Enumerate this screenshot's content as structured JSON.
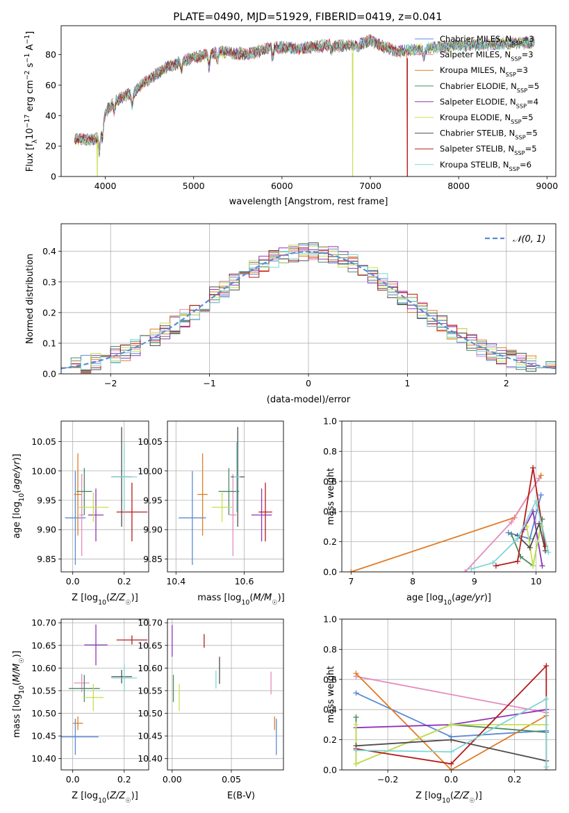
{
  "figure": {
    "title": "PLATE=0490, MJD=51929, FIBERID=0419, z=0.041"
  },
  "colors": {
    "Chabrier MILES": "#5b8ad6",
    "Salpeter MILES": "#e58bbd",
    "Kroupa MILES": "#e07b25",
    "Chabrier ELODIE": "#4a8a62",
    "Salpeter ELODIE": "#8e34b8",
    "Kroupa ELODIE": "#c6e04c",
    "Chabrier STELIB": "#4d4d4d",
    "Salpeter STELIB": "#b31b1b",
    "Kroupa STELIB": "#7fd6d6"
  },
  "chart_data": [
    {
      "id": "spectrum",
      "type": "line",
      "xlabel": "wavelength [Angstrom, rest frame]",
      "ylabel": "Flux [f_λ 10^-17 erg cm^-2 s^-1 A^-1]",
      "xlim": [
        3500,
        9100
      ],
      "ylim": [
        0,
        99
      ],
      "xticks": [
        4000,
        5000,
        6000,
        7000,
        8000,
        9000
      ],
      "yticks": [
        0,
        20,
        40,
        60,
        80
      ],
      "grid": false,
      "legend": "top-right",
      "series": [
        {
          "name": "Chabrier MILES",
          "nssp": 3
        },
        {
          "name": "Salpeter MILES",
          "nssp": 3
        },
        {
          "name": "Kroupa MILES",
          "nssp": 3
        },
        {
          "name": "Chabrier ELODIE",
          "nssp": 5
        },
        {
          "name": "Salpeter ELODIE",
          "nssp": 4
        },
        {
          "name": "Kroupa ELODIE",
          "nssp": 5
        },
        {
          "name": "Chabrier STELIB",
          "nssp": 5
        },
        {
          "name": "Salpeter STELIB",
          "nssp": 5
        },
        {
          "name": "Kroupa STELIB",
          "nssp": 6
        }
      ],
      "spectrum_envelope": {
        "x": [
          3650,
          3800,
          3900,
          4000,
          4100,
          4300,
          4500,
          4700,
          5000,
          5300,
          5600,
          5900,
          6200,
          6500,
          6800,
          7000,
          7300,
          7600,
          8000,
          8400,
          8800
        ],
        "y": [
          25,
          24,
          25,
          42,
          49,
          55,
          64,
          72,
          78,
          82,
          80,
          85,
          84,
          86,
          86,
          89,
          82,
          84,
          86,
          87,
          88
        ]
      },
      "dropouts": [
        {
          "series": "Kroupa ELODIE",
          "x": 3910
        },
        {
          "series": "Kroupa ELODIE",
          "x": 6800
        },
        {
          "series": "Salpeter STELIB",
          "x": 7420
        }
      ]
    },
    {
      "id": "residuals",
      "type": "histogram",
      "xlabel": "(data-model)/error",
      "ylabel": "Normed distribution",
      "xlim": [
        -2.5,
        2.5
      ],
      "ylim": [
        0,
        0.49
      ],
      "xticks": [
        -2,
        -1,
        0,
        1,
        2
      ],
      "yticks": [
        0.0,
        0.1,
        0.2,
        0.3,
        0.4
      ],
      "grid": true,
      "legend": "top-right",
      "reference_label": "𝒩(0, 1)",
      "bin_width": 0.1,
      "bin_start": -2.5
    },
    {
      "id": "age-vs-Z",
      "type": "scatter",
      "xlabel": "Z [log10(Z/Z☉)]",
      "ylabel": "age  [log10(age/yr)]",
      "xlim": [
        -0.045,
        0.295
      ],
      "ylim": [
        9.828,
        10.085
      ],
      "xticks": [
        0.0,
        0.2
      ],
      "yticks": [
        9.85,
        9.9,
        9.95,
        10.0,
        10.05
      ],
      "points": [
        {
          "series": "Chabrier MILES",
          "x": 0.01,
          "y": 9.92,
          "xerr": 0.04,
          "yerr": 0.08
        },
        {
          "series": "Salpeter MILES",
          "x": 0.035,
          "y": 9.925,
          "xerr": 0.01,
          "yerr": 0.07
        },
        {
          "series": "Kroupa MILES",
          "x": 0.02,
          "y": 9.96,
          "xerr": 0.015,
          "yerr": 0.07
        },
        {
          "series": "Chabrier ELODIE",
          "x": 0.045,
          "y": 9.965,
          "xerr": 0.03,
          "yerr": 0.04
        },
        {
          "series": "Salpeter ELODIE",
          "x": 0.09,
          "y": 9.925,
          "xerr": 0.03,
          "yerr": 0.045
        },
        {
          "series": "Kroupa ELODIE",
          "x": 0.08,
          "y": 9.938,
          "xerr": 0.06,
          "yerr": 0.025
        },
        {
          "series": "Chabrier STELIB",
          "x": 0.19,
          "y": 9.99,
          "xerr": 0.04,
          "yerr": 0.085
        },
        {
          "series": "Salpeter STELIB",
          "x": 0.23,
          "y": 9.93,
          "xerr": 0.06,
          "yerr": 0.05
        },
        {
          "series": "Kroupa STELIB",
          "x": 0.2,
          "y": 9.99,
          "xerr": 0.05,
          "yerr": 0.06
        }
      ]
    },
    {
      "id": "age-vs-mass",
      "type": "scatter",
      "xlabel": "mass [log10(M/M☉)]",
      "ylabel": "",
      "xlim": [
        10.375,
        10.715
      ],
      "ylim": [
        9.828,
        10.085
      ],
      "xticks": [
        10.4,
        10.6
      ],
      "yticks": [
        9.85,
        9.9,
        9.95,
        10.0,
        10.05
      ],
      "points": [
        {
          "series": "Chabrier MILES",
          "x": 10.448,
          "y": 9.92,
          "xerr": 0.04,
          "yerr": 0.08
        },
        {
          "series": "Salpeter MILES",
          "x": 10.567,
          "y": 9.925,
          "xerr": 0.01,
          "yerr": 0.07
        },
        {
          "series": "Kroupa MILES",
          "x": 10.478,
          "y": 9.96,
          "xerr": 0.015,
          "yerr": 0.07
        },
        {
          "series": "Chabrier ELODIE",
          "x": 10.555,
          "y": 9.965,
          "xerr": 0.03,
          "yerr": 0.04
        },
        {
          "series": "Salpeter ELODIE",
          "x": 10.651,
          "y": 9.925,
          "xerr": 0.03,
          "yerr": 0.045
        },
        {
          "series": "Kroupa ELODIE",
          "x": 10.535,
          "y": 9.938,
          "xerr": 0.03,
          "yerr": 0.025
        },
        {
          "series": "Chabrier STELIB",
          "x": 10.581,
          "y": 9.99,
          "xerr": 0.02,
          "yerr": 0.085
        },
        {
          "series": "Salpeter STELIB",
          "x": 10.662,
          "y": 9.93,
          "xerr": 0.02,
          "yerr": 0.05
        },
        {
          "series": "Kroupa STELIB",
          "x": 10.578,
          "y": 9.99,
          "xerr": 0.01,
          "yerr": 0.06
        }
      ]
    },
    {
      "id": "weight-vs-age",
      "type": "line",
      "xlabel": "age  [log10(age/yr)]",
      "ylabel": "mass weight",
      "xlim": [
        6.85,
        10.32
      ],
      "ylim": [
        0,
        1
      ],
      "xticks": [
        7,
        8,
        9,
        10
      ],
      "yticks": [
        0.0,
        0.2,
        0.4,
        0.6,
        0.8,
        1.0
      ],
      "grid": true,
      "series": [
        {
          "name": "Kroupa MILES",
          "x": [
            7.0,
            9.65,
            10.08
          ],
          "y": [
            0.0,
            0.36,
            0.64
          ]
        },
        {
          "name": "Salpeter MILES",
          "x": [
            8.85,
            9.6,
            10.05
          ],
          "y": [
            0.0,
            0.33,
            0.62
          ]
        },
        {
          "name": "Chabrier MILES",
          "x": [
            9.55,
            9.9,
            10.08
          ],
          "y": [
            0.26,
            0.22,
            0.51
          ]
        },
        {
          "name": "Chabrier ELODIE",
          "x": [
            9.6,
            9.75,
            9.95,
            10.1
          ],
          "y": [
            0.25,
            0.1,
            0.04,
            0.35
          ]
        },
        {
          "name": "Salpeter ELODIE",
          "x": [
            9.8,
            9.95,
            10.1
          ],
          "y": [
            0.28,
            0.4,
            0.04
          ]
        },
        {
          "name": "Kroupa ELODIE",
          "x": [
            9.85,
            9.95,
            10.08
          ],
          "y": [
            0.3,
            0.04,
            0.3
          ]
        },
        {
          "name": "Chabrier STELIB",
          "x": [
            9.7,
            9.9,
            10.05,
            10.15
          ],
          "y": [
            0.24,
            0.16,
            0.32,
            0.14
          ]
        },
        {
          "name": "Salpeter STELIB",
          "x": [
            9.35,
            9.7,
            9.95,
            10.15
          ],
          "y": [
            0.04,
            0.07,
            0.69,
            0.17
          ]
        },
        {
          "name": "Kroupa STELIB",
          "x": [
            8.95,
            9.3,
            9.7,
            10.0,
            10.2
          ],
          "y": [
            0.02,
            0.06,
            0.22,
            0.47,
            0.13
          ]
        }
      ]
    },
    {
      "id": "mass-vs-Z",
      "type": "scatter",
      "xlabel": "Z [log10(Z/Z☉)]",
      "ylabel": "mass [log10(M/M☉)]",
      "xlim": [
        -0.045,
        0.295
      ],
      "ylim": [
        10.375,
        10.708
      ],
      "xticks": [
        0.0,
        0.2
      ],
      "yticks": [
        10.4,
        10.45,
        10.5,
        10.55,
        10.6,
        10.65,
        10.7
      ],
      "points": [
        {
          "series": "Chabrier MILES",
          "x": 0.01,
          "y": 10.448,
          "xerr": 0.09,
          "yerr": 0.04
        },
        {
          "series": "Salpeter MILES",
          "x": 0.035,
          "y": 10.567,
          "xerr": 0.03,
          "yerr": 0.02
        },
        {
          "series": "Kroupa MILES",
          "x": 0.02,
          "y": 10.478,
          "xerr": 0.02,
          "yerr": 0.015
        },
        {
          "series": "Chabrier ELODIE",
          "x": 0.045,
          "y": 10.555,
          "xerr": 0.06,
          "yerr": 0.03
        },
        {
          "series": "Salpeter ELODIE",
          "x": 0.09,
          "y": 10.651,
          "xerr": 0.045,
          "yerr": 0.045
        },
        {
          "series": "Kroupa ELODIE",
          "x": 0.08,
          "y": 10.535,
          "xerr": 0.04,
          "yerr": 0.03
        },
        {
          "series": "Chabrier STELIB",
          "x": 0.19,
          "y": 10.581,
          "xerr": 0.04,
          "yerr": 0.015
        },
        {
          "series": "Salpeter STELIB",
          "x": 0.23,
          "y": 10.662,
          "xerr": 0.06,
          "yerr": 0.01
        },
        {
          "series": "Kroupa STELIB",
          "x": 0.2,
          "y": 10.578,
          "xerr": 0.05,
          "yerr": 0.03
        }
      ]
    },
    {
      "id": "mass-vs-EBV",
      "type": "scatter",
      "xlabel": "E(B-V)",
      "ylabel": "",
      "xlim": [
        -0.004,
        0.094
      ],
      "ylim": [
        10.375,
        10.708
      ],
      "xticks": [
        0.0,
        0.05
      ],
      "yticks": [
        10.4,
        10.45,
        10.5,
        10.55,
        10.6,
        10.65,
        10.7
      ],
      "points": [
        {
          "series": "Chabrier MILES",
          "x": 0.088,
          "y": 10.448,
          "xerr": 0.0,
          "yerr": 0.04
        },
        {
          "series": "Salpeter MILES",
          "x": 0.0835,
          "y": 10.567,
          "xerr": 0.0,
          "yerr": 0.025
        },
        {
          "series": "Kroupa MILES",
          "x": 0.0865,
          "y": 10.478,
          "xerr": 0.0,
          "yerr": 0.015
        },
        {
          "series": "Chabrier ELODIE",
          "x": 0.001,
          "y": 10.555,
          "xerr": 0.0,
          "yerr": 0.03
        },
        {
          "series": "Salpeter ELODIE",
          "x": 0.0,
          "y": 10.66,
          "xerr": 0.0,
          "yerr": 0.035
        },
        {
          "series": "Kroupa ELODIE",
          "x": 0.006,
          "y": 10.535,
          "xerr": 0.0,
          "yerr": 0.03
        },
        {
          "series": "Chabrier STELIB",
          "x": 0.04,
          "y": 10.595,
          "xerr": 0.0,
          "yerr": 0.03
        },
        {
          "series": "Salpeter STELIB",
          "x": 0.027,
          "y": 10.66,
          "xerr": 0.0,
          "yerr": 0.015
        },
        {
          "series": "Kroupa STELIB",
          "x": 0.037,
          "y": 10.575,
          "xerr": 0.0,
          "yerr": 0.02
        }
      ]
    },
    {
      "id": "weight-vs-Z",
      "type": "line",
      "xlabel": "Z [log10(Z/Z☉)]",
      "ylabel": "mass weight",
      "xlim": [
        -0.345,
        0.33
      ],
      "ylim": [
        0,
        1
      ],
      "xticks": [
        -0.2,
        0.0,
        0.2
      ],
      "yticks": [
        0.0,
        0.2,
        0.4,
        0.6,
        0.8,
        1.0
      ],
      "grid": true,
      "series": [
        {
          "name": "Chabrier MILES",
          "x": [
            -0.3,
            0.0,
            0.3
          ],
          "y": [
            0.51,
            0.22,
            0.26
          ]
        },
        {
          "name": "Salpeter MILES",
          "x": [
            -0.3,
            0.3
          ],
          "y": [
            0.62,
            0.38
          ]
        },
        {
          "name": "Kroupa MILES",
          "x": [
            -0.3,
            0.0,
            0.3
          ],
          "y": [
            0.64,
            0.0,
            0.36
          ]
        },
        {
          "name": "Chabrier ELODIE",
          "x": [
            -0.3,
            -0.3,
            0.0,
            0.3
          ],
          "y": [
            0.35,
            0.04,
            0.3,
            0.25
          ]
        },
        {
          "name": "Salpeter ELODIE",
          "x": [
            -0.3,
            0.0,
            0.3
          ],
          "y": [
            0.28,
            0.3,
            0.4
          ]
        },
        {
          "name": "Kroupa ELODIE",
          "x": [
            -0.3,
            -0.3,
            0.0,
            0.3
          ],
          "y": [
            0.3,
            0.04,
            0.3,
            0.3
          ]
        },
        {
          "name": "Chabrier STELIB",
          "x": [
            -0.3,
            0.0,
            0.3
          ],
          "y": [
            0.16,
            0.2,
            0.06
          ]
        },
        {
          "name": "Salpeter STELIB",
          "x": [
            -0.3,
            0.0,
            0.3,
            0.3
          ],
          "y": [
            0.14,
            0.04,
            0.69,
            0.0
          ]
        },
        {
          "name": "Kroupa STELIB",
          "x": [
            -0.3,
            0.0,
            0.3,
            0.3
          ],
          "y": [
            0.13,
            0.12,
            0.47,
            0.02
          ]
        }
      ]
    }
  ]
}
